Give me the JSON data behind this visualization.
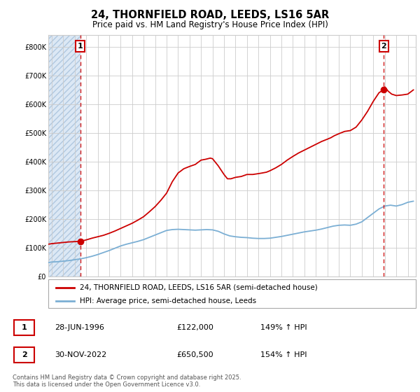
{
  "title1": "24, THORNFIELD ROAD, LEEDS, LS16 5AR",
  "title2": "Price paid vs. HM Land Registry's House Price Index (HPI)",
  "ylabel_ticks": [
    "£0",
    "£100K",
    "£200K",
    "£300K",
    "£400K",
    "£500K",
    "£600K",
    "£700K",
    "£800K"
  ],
  "ytick_vals": [
    0,
    100000,
    200000,
    300000,
    400000,
    500000,
    600000,
    700000,
    800000
  ],
  "ylim": [
    0,
    840000
  ],
  "xlim_start": 1993.7,
  "xlim_end": 2025.7,
  "xticks": [
    1994,
    1995,
    1996,
    1997,
    1998,
    1999,
    2000,
    2001,
    2002,
    2003,
    2004,
    2005,
    2006,
    2007,
    2008,
    2009,
    2010,
    2011,
    2012,
    2013,
    2014,
    2015,
    2016,
    2017,
    2018,
    2019,
    2020,
    2021,
    2022,
    2023,
    2024,
    2025
  ],
  "hpi_line_color": "#7bafd4",
  "price_line_color": "#cc0000",
  "vline_color": "#cc0000",
  "grid_color": "#cccccc",
  "hatch_facecolor": "#dce8f5",
  "marker_color": "#cc0000",
  "point1_x": 1996.49,
  "point1_y": 122000,
  "point2_x": 2022.92,
  "point2_y": 650500,
  "label1": "1",
  "label2": "2",
  "legend_line1": "24, THORNFIELD ROAD, LEEDS, LS16 5AR (semi-detached house)",
  "legend_line2": "HPI: Average price, semi-detached house, Leeds",
  "ann1_date": "28-JUN-1996",
  "ann1_price": "£122,000",
  "ann1_hpi": "149% ↑ HPI",
  "ann2_date": "30-NOV-2022",
  "ann2_price": "£650,500",
  "ann2_hpi": "154% ↑ HPI",
  "footer": "Contains HM Land Registry data © Crown copyright and database right 2025.\nThis data is licensed under the Open Government Licence v3.0.",
  "title_fontsize": 10.5,
  "subtitle_fontsize": 8.5,
  "tick_fontsize": 7,
  "legend_fontsize": 7.5,
  "ann_fontsize": 8,
  "footer_fontsize": 6,
  "hpi_years": [
    1993.7,
    1994.0,
    1994.5,
    1995.0,
    1995.5,
    1996.0,
    1996.5,
    1997.0,
    1997.5,
    1998.0,
    1998.5,
    1999.0,
    1999.5,
    2000.0,
    2000.5,
    2001.0,
    2001.5,
    2002.0,
    2002.5,
    2003.0,
    2003.5,
    2004.0,
    2004.5,
    2005.0,
    2005.5,
    2006.0,
    2006.5,
    2007.0,
    2007.5,
    2008.0,
    2008.5,
    2009.0,
    2009.5,
    2010.0,
    2010.5,
    2011.0,
    2011.5,
    2012.0,
    2012.5,
    2013.0,
    2013.5,
    2014.0,
    2014.5,
    2015.0,
    2015.5,
    2016.0,
    2016.5,
    2017.0,
    2017.5,
    2018.0,
    2018.5,
    2019.0,
    2019.5,
    2020.0,
    2020.5,
    2021.0,
    2021.5,
    2022.0,
    2022.5,
    2023.0,
    2023.5,
    2024.0,
    2024.5,
    2025.0,
    2025.5
  ],
  "hpi_vals": [
    48000,
    50000,
    51000,
    53000,
    55000,
    58000,
    61000,
    65000,
    70000,
    76000,
    83000,
    90000,
    98000,
    106000,
    112000,
    117000,
    122000,
    128000,
    136000,
    144000,
    152000,
    160000,
    163000,
    164000,
    163000,
    162000,
    161000,
    162000,
    163000,
    162000,
    157000,
    148000,
    141000,
    138000,
    136000,
    135000,
    133000,
    132000,
    132000,
    133000,
    136000,
    139000,
    143000,
    147000,
    151000,
    155000,
    158000,
    161000,
    165000,
    170000,
    175000,
    178000,
    179000,
    178000,
    182000,
    190000,
    205000,
    220000,
    235000,
    245000,
    248000,
    245000,
    250000,
    258000,
    262000
  ],
  "price_years": [
    1993.7,
    1994.0,
    1994.5,
    1995.0,
    1995.5,
    1996.0,
    1996.49,
    1997.0,
    1997.5,
    1998.0,
    1998.5,
    1999.0,
    1999.5,
    2000.0,
    2000.5,
    2001.0,
    2001.5,
    2002.0,
    2002.5,
    2003.0,
    2003.5,
    2004.0,
    2004.5,
    2005.0,
    2005.5,
    2006.0,
    2006.5,
    2007.0,
    2007.4,
    2007.8,
    2008.0,
    2008.5,
    2009.0,
    2009.3,
    2009.6,
    2010.0,
    2010.5,
    2011.0,
    2011.5,
    2012.0,
    2012.3,
    2012.7,
    2013.0,
    2013.5,
    2014.0,
    2014.5,
    2015.0,
    2015.5,
    2016.0,
    2016.5,
    2017.0,
    2017.5,
    2018.0,
    2018.3,
    2018.6,
    2019.0,
    2019.5,
    2020.0,
    2020.5,
    2021.0,
    2021.5,
    2022.0,
    2022.5,
    2022.92,
    2023.0,
    2023.3,
    2023.6,
    2024.0,
    2024.5,
    2025.0,
    2025.5
  ],
  "price_vals": [
    112000,
    114000,
    116000,
    118000,
    120000,
    121000,
    122000,
    127000,
    133000,
    138000,
    143000,
    150000,
    158000,
    167000,
    176000,
    185000,
    196000,
    208000,
    225000,
    243000,
    265000,
    290000,
    330000,
    360000,
    375000,
    383000,
    390000,
    405000,
    408000,
    412000,
    410000,
    385000,
    355000,
    340000,
    340000,
    345000,
    348000,
    355000,
    355000,
    358000,
    360000,
    363000,
    368000,
    378000,
    390000,
    405000,
    418000,
    430000,
    440000,
    450000,
    460000,
    470000,
    478000,
    483000,
    490000,
    497000,
    505000,
    508000,
    520000,
    545000,
    575000,
    610000,
    640000,
    650500,
    660000,
    645000,
    635000,
    630000,
    632000,
    635000,
    650000
  ]
}
